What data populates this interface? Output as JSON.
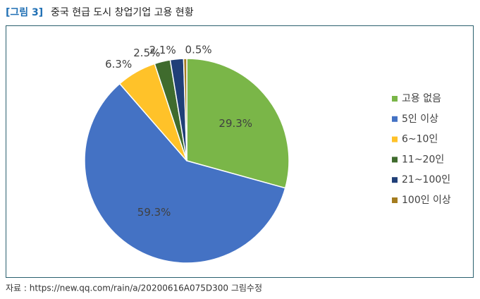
{
  "chart_data": {
    "type": "pie",
    "figure_label": "[그림 3]",
    "title": "중국 현급 도시 창업기업 고용 현황",
    "categories": [
      "고용 없음",
      "5인 이상",
      "6~10인",
      "11~20인",
      "21~100인",
      "100인 이상"
    ],
    "values": [
      29.3,
      59.3,
      6.3,
      2.5,
      2.1,
      0.5
    ],
    "value_labels": [
      "29.3%",
      "59.3%",
      "6.3%",
      "2.5%",
      "2.1%",
      "0.5%"
    ],
    "colors": [
      "#7ab648",
      "#4472c4",
      "#ffc229",
      "#3f6b2d",
      "#203f78",
      "#a47c1f"
    ],
    "legend": "right",
    "source": "자료 : https://new.qq.com/rain/a/20200616A075D300 그림수정"
  }
}
